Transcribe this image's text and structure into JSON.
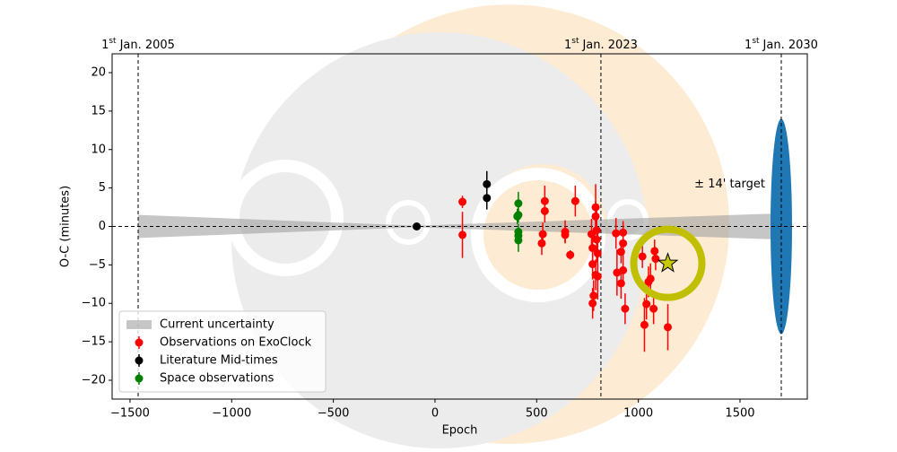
{
  "chart_data": {
    "type": "scatter",
    "xlabel": "Epoch",
    "ylabel": "O-C (minutes)",
    "xlim": [
      -1588,
      1831
    ],
    "ylim": [
      -22.45,
      22.45
    ],
    "xticks": [
      {
        "value": -1500,
        "label": "−1500"
      },
      {
        "value": -1000,
        "label": "−1000"
      },
      {
        "value": -500,
        "label": "−500"
      },
      0,
      500,
      1000,
      1500
    ],
    "yticks": [
      {
        "value": -20,
        "label": "−20"
      },
      {
        "value": -15,
        "label": "−15"
      },
      {
        "value": -10,
        "label": "−10"
      },
      {
        "value": -5,
        "label": "−5"
      },
      0,
      5,
      10,
      15,
      20
    ],
    "legend_loc": "lower left",
    "zero_line": true,
    "epoch_lines": [
      {
        "x": -1460,
        "day": "1",
        "suffix": "st",
        "text": "Jan. 2005"
      },
      {
        "x": 816,
        "day": "1",
        "suffix": "st",
        "text": "Jan. 2023"
      },
      {
        "x": 1703,
        "day": "1",
        "suffix": "st",
        "text": "Jan. 2030"
      }
    ],
    "band": {
      "name": "Current uncertainty",
      "color": "#a0a0a0",
      "x": [
        -1460,
        -90,
        1703
      ],
      "lower": [
        -1.5,
        -0.1,
        -1.7
      ],
      "upper": [
        1.5,
        0.1,
        1.7
      ]
    },
    "target": {
      "x": 1703,
      "half_height": 14,
      "label": "± 14' target",
      "color": "#1f77b4"
    },
    "prediction": {
      "x": 1145,
      "y": -4.8,
      "color": "#c8c800",
      "ring_color": "#c0c000"
    },
    "series": [
      {
        "name": "Observations on ExoClock",
        "color": "#ff0000",
        "x": [
          135,
          135,
          530,
          525,
          540,
          540,
          640,
          640,
          665,
          690,
          770,
          775,
          775,
          780,
          775,
          790,
          790,
          795,
          795,
          800,
          800,
          790,
          890,
          895,
          915,
          915,
          925,
          925,
          935,
          925,
          1020,
          1030,
          1040,
          1050,
          1060,
          1075,
          1080,
          1085,
          1145
        ],
        "values": [
          3.2,
          -1.1,
          -1.0,
          -2.2,
          3.3,
          2.0,
          -0.7,
          -1.1,
          -3.7,
          3.3,
          -1.0,
          -2.8,
          -4.9,
          -9.0,
          -10.0,
          2.5,
          1.3,
          -0.5,
          -1.7,
          -3.5,
          -6.5,
          -6.3,
          -0.9,
          -6.0,
          -7.4,
          -3.3,
          -0.8,
          -2.2,
          -10.7,
          -5.7,
          -3.9,
          -12.8,
          -10.1,
          -7.2,
          -6.8,
          -10.7,
          -3.2,
          -4.2,
          -13.1
        ],
        "errors": [
          0.8,
          3,
          1.5,
          1.5,
          2,
          1.5,
          1.5,
          1,
          0.6,
          2,
          2,
          2,
          2,
          2,
          2,
          3,
          2,
          3,
          3,
          3,
          3,
          2,
          2,
          3,
          2,
          1.5,
          1.5,
          1.5,
          2,
          2,
          1.5,
          3.5,
          2,
          2,
          2,
          2,
          1.5,
          1.5,
          3
        ]
      },
      {
        "name": "Literature Mid-times",
        "color": "#000000",
        "x": [
          -90,
          255,
          255
        ],
        "values": [
          0,
          5.5,
          3.7
        ],
        "errors": [
          0.3,
          1.7,
          1.5
        ]
      },
      {
        "name": "Space observations",
        "color": "#008000",
        "x": [
          410,
          410,
          405,
          410,
          410,
          410
        ],
        "values": [
          3.0,
          1.5,
          1.3,
          -0.7,
          -1.2,
          -1.8
        ],
        "errors": [
          1.5,
          1,
          1,
          1,
          1,
          1.5
        ]
      }
    ]
  }
}
